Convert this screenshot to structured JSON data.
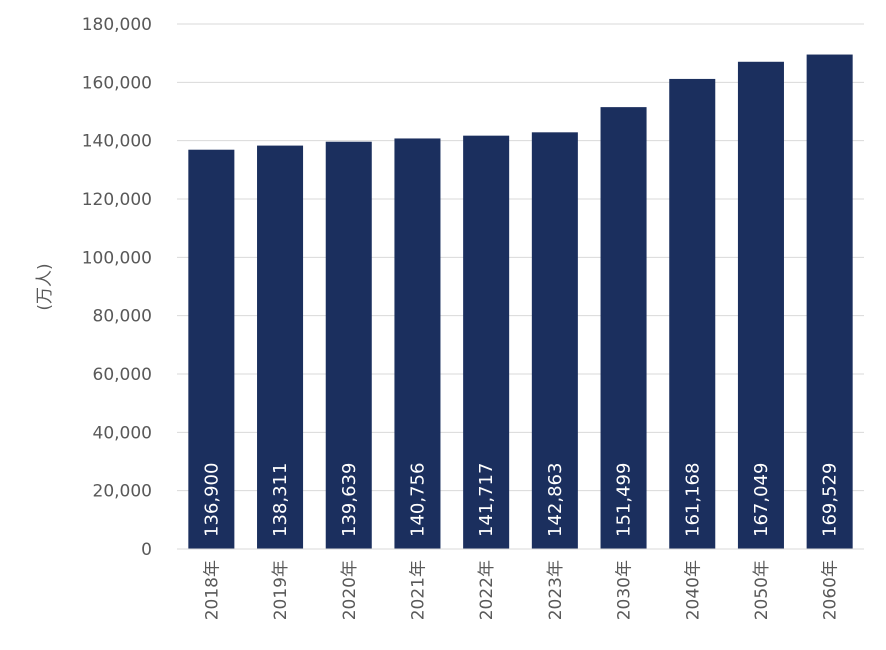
{
  "chart_data": {
    "type": "bar",
    "categories": [
      "2018年",
      "2019年",
      "2020年",
      "2021年",
      "2022年",
      "2023年",
      "2030年",
      "2040年",
      "2050年",
      "2060年"
    ],
    "values": [
      136900,
      138311,
      139639,
      140756,
      141717,
      142863,
      151499,
      161168,
      167049,
      169529
    ],
    "value_labels": [
      "136,900",
      "138,311",
      "139,639",
      "140,756",
      "141,717",
      "142,863",
      "151,499",
      "161,168",
      "167,049",
      "169,529"
    ],
    "ylabel": "(万人)",
    "ylim": [
      0,
      180000
    ],
    "yticks": [
      0,
      20000,
      40000,
      60000,
      80000,
      100000,
      120000,
      140000,
      160000,
      180000
    ],
    "ytick_labels": [
      "0",
      "20,000",
      "40,000",
      "60,000",
      "80,000",
      "100,000",
      "120,000",
      "140,000",
      "160,000",
      "180,000"
    ],
    "grid": true,
    "bar_color": "#1b2f5e"
  }
}
